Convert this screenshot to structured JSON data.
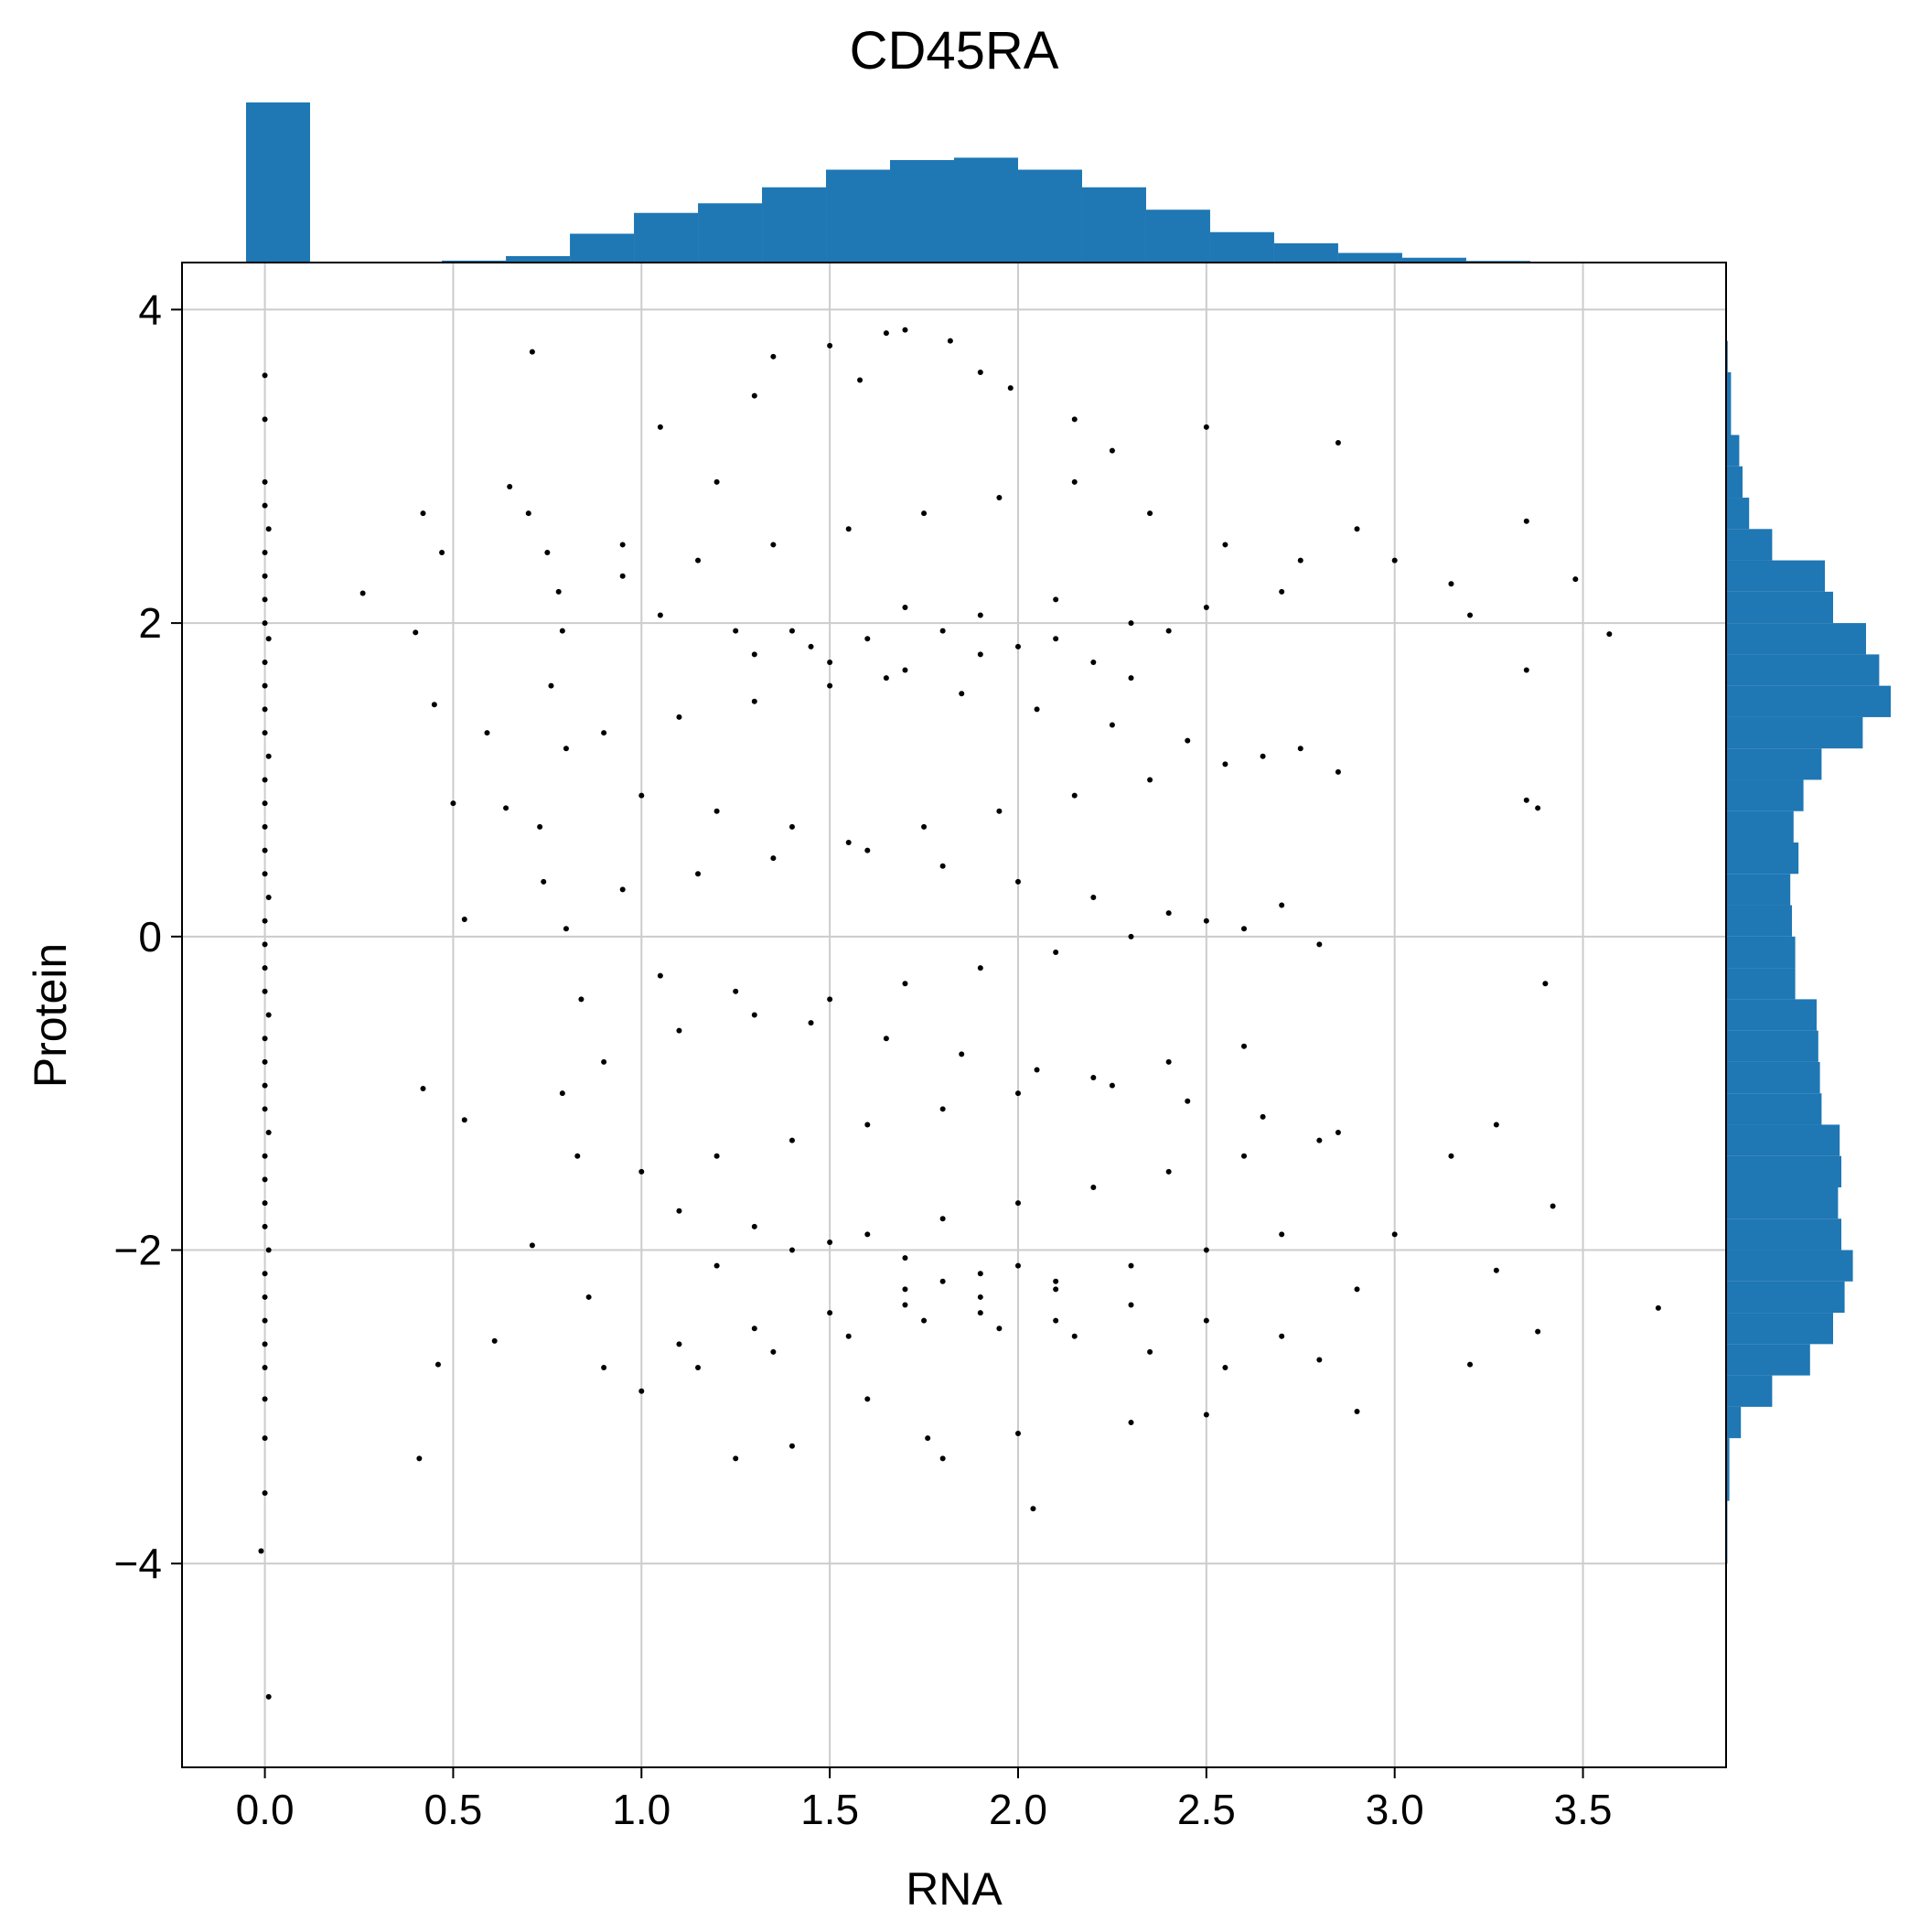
{
  "chart_data": {
    "type": "scatter",
    "title": "CD45RA",
    "xlabel": "RNA",
    "ylabel": "Protein",
    "xlim": [
      -0.22,
      3.88
    ],
    "ylim": [
      -5.3,
      4.3
    ],
    "x_ticks": [
      "0.0",
      "0.5",
      "1.0",
      "1.5",
      "2.0",
      "2.5",
      "3.0",
      "3.5"
    ],
    "y_ticks": [
      "4",
      "2",
      "0",
      "−2",
      "−4"
    ],
    "x_tick_values": [
      0,
      0.5,
      1.0,
      1.5,
      2.0,
      2.5,
      3.0,
      3.5
    ],
    "y_tick_values": [
      4,
      2,
      0,
      -2,
      -4
    ],
    "grid": true,
    "point_color": "#000000",
    "hist_color": "#1f77b4",
    "marginal_x_hist": {
      "bin_width": 0.17,
      "bins": [
        {
          "x0": -0.05,
          "x1": 0.12,
          "height": 1.0
        },
        {
          "x0": 0.47,
          "x1": 0.64,
          "height": 0.012
        },
        {
          "x0": 0.64,
          "x1": 0.81,
          "height": 0.04
        },
        {
          "x0": 0.81,
          "x1": 0.98,
          "height": 0.18
        },
        {
          "x0": 0.98,
          "x1": 1.15,
          "height": 0.31
        },
        {
          "x0": 1.15,
          "x1": 1.32,
          "height": 0.37
        },
        {
          "x0": 1.32,
          "x1": 1.49,
          "height": 0.47
        },
        {
          "x0": 1.49,
          "x1": 1.66,
          "height": 0.58
        },
        {
          "x0": 1.66,
          "x1": 1.83,
          "height": 0.64
        },
        {
          "x0": 1.83,
          "x1": 2.0,
          "height": 0.655
        },
        {
          "x0": 2.0,
          "x1": 2.17,
          "height": 0.58
        },
        {
          "x0": 2.17,
          "x1": 2.34,
          "height": 0.47
        },
        {
          "x0": 2.34,
          "x1": 2.51,
          "height": 0.33
        },
        {
          "x0": 2.51,
          "x1": 2.68,
          "height": 0.19
        },
        {
          "x0": 2.68,
          "x1": 2.85,
          "height": 0.12
        },
        {
          "x0": 2.85,
          "x1": 3.02,
          "height": 0.06
        },
        {
          "x0": 3.02,
          "x1": 3.19,
          "height": 0.03
        },
        {
          "x0": 3.19,
          "x1": 3.36,
          "height": 0.01
        }
      ]
    },
    "marginal_y_hist": {
      "bins": [
        {
          "y0": 3.6,
          "y1": 3.8,
          "width": 0.01
        },
        {
          "y0": 3.2,
          "y1": 3.6,
          "width": 0.03
        },
        {
          "y0": 3.0,
          "y1": 3.2,
          "width": 0.08
        },
        {
          "y0": 2.8,
          "y1": 3.0,
          "width": 0.1
        },
        {
          "y0": 2.6,
          "y1": 2.8,
          "width": 0.14
        },
        {
          "y0": 2.4,
          "y1": 2.6,
          "width": 0.28
        },
        {
          "y0": 2.2,
          "y1": 2.4,
          "width": 0.6
        },
        {
          "y0": 2.0,
          "y1": 2.2,
          "width": 0.65
        },
        {
          "y0": 1.8,
          "y1": 2.0,
          "width": 0.85
        },
        {
          "y0": 1.6,
          "y1": 1.8,
          "width": 0.93
        },
        {
          "y0": 1.4,
          "y1": 1.6,
          "width": 1.0
        },
        {
          "y0": 1.2,
          "y1": 1.4,
          "width": 0.83
        },
        {
          "y0": 1.0,
          "y1": 1.2,
          "width": 0.58
        },
        {
          "y0": 0.8,
          "y1": 1.0,
          "width": 0.47
        },
        {
          "y0": 0.6,
          "y1": 0.8,
          "width": 0.41
        },
        {
          "y0": 0.4,
          "y1": 0.6,
          "width": 0.44
        },
        {
          "y0": 0.2,
          "y1": 0.4,
          "width": 0.39
        },
        {
          "y0": 0.0,
          "y1": 0.2,
          "width": 0.4
        },
        {
          "y0": -0.2,
          "y1": 0.0,
          "width": 0.42
        },
        {
          "y0": -0.4,
          "y1": -0.2,
          "width": 0.42
        },
        {
          "y0": -0.6,
          "y1": -0.4,
          "width": 0.55
        },
        {
          "y0": -0.8,
          "y1": -0.6,
          "width": 0.56
        },
        {
          "y0": -1.0,
          "y1": -0.8,
          "width": 0.57
        },
        {
          "y0": -1.2,
          "y1": -1.0,
          "width": 0.58
        },
        {
          "y0": -1.4,
          "y1": -1.2,
          "width": 0.69
        },
        {
          "y0": -1.6,
          "y1": -1.4,
          "width": 0.7
        },
        {
          "y0": -1.8,
          "y1": -1.6,
          "width": 0.68
        },
        {
          "y0": -2.0,
          "y1": -1.8,
          "width": 0.7
        },
        {
          "y0": -2.2,
          "y1": -2.0,
          "width": 0.77
        },
        {
          "y0": -2.4,
          "y1": -2.2,
          "width": 0.72
        },
        {
          "y0": -2.6,
          "y1": -2.4,
          "width": 0.65
        },
        {
          "y0": -2.8,
          "y1": -2.6,
          "width": 0.51
        },
        {
          "y0": -3.0,
          "y1": -2.8,
          "width": 0.28
        },
        {
          "y0": -3.2,
          "y1": -3.0,
          "width": 0.09
        },
        {
          "y0": -3.6,
          "y1": -3.2,
          "width": 0.02
        },
        {
          "y0": -4.0,
          "y1": -3.6,
          "width": 0.008
        },
        {
          "y0": -4.2,
          "y1": -4.0,
          "width": 0.005
        },
        {
          "y0": -4.9,
          "y1": -4.7,
          "width": 0.005
        }
      ]
    },
    "points": [
      [
        0.0,
        3.58
      ],
      [
        0.0,
        3.3
      ],
      [
        0.0,
        2.9
      ],
      [
        0.0,
        2.75
      ],
      [
        0.01,
        2.6
      ],
      [
        0.0,
        2.45
      ],
      [
        0.0,
        2.3
      ],
      [
        0.0,
        2.15
      ],
      [
        0.0,
        2.0
      ],
      [
        0.01,
        1.9
      ],
      [
        0.0,
        1.75
      ],
      [
        0.0,
        1.6
      ],
      [
        0.0,
        1.45
      ],
      [
        0.0,
        1.3
      ],
      [
        0.01,
        1.15
      ],
      [
        0.0,
        1.0
      ],
      [
        0.0,
        0.85
      ],
      [
        0.0,
        0.7
      ],
      [
        0.0,
        0.55
      ],
      [
        0.0,
        0.4
      ],
      [
        0.01,
        0.25
      ],
      [
        0.0,
        0.1
      ],
      [
        0.0,
        -0.05
      ],
      [
        0.0,
        -0.2
      ],
      [
        0.0,
        -0.35
      ],
      [
        0.01,
        -0.5
      ],
      [
        0.0,
        -0.65
      ],
      [
        0.0,
        -0.8
      ],
      [
        0.0,
        -0.95
      ],
      [
        0.0,
        -1.1
      ],
      [
        0.01,
        -1.25
      ],
      [
        0.0,
        -1.4
      ],
      [
        0.0,
        -1.55
      ],
      [
        0.0,
        -1.7
      ],
      [
        0.0,
        -1.85
      ],
      [
        0.01,
        -2.0
      ],
      [
        0.0,
        -2.15
      ],
      [
        0.0,
        -2.3
      ],
      [
        0.0,
        -2.45
      ],
      [
        0.0,
        -2.6
      ],
      [
        0.0,
        -2.75
      ],
      [
        0.0,
        -2.95
      ],
      [
        0.0,
        -3.2
      ],
      [
        0.0,
        -3.55
      ],
      [
        -0.01,
        -3.92
      ],
      [
        0.01,
        -4.85
      ],
      [
        0.71,
        3.73
      ],
      [
        0.42,
        2.7
      ],
      [
        0.47,
        2.45
      ],
      [
        0.26,
        2.19
      ],
      [
        0.4,
        1.94
      ],
      [
        0.45,
        1.48
      ],
      [
        0.5,
        0.85
      ],
      [
        0.53,
        0.11
      ],
      [
        0.42,
        -0.97
      ],
      [
        0.53,
        -1.17
      ],
      [
        0.46,
        -2.73
      ],
      [
        0.41,
        -3.33
      ],
      [
        0.61,
        -2.58
      ],
      [
        0.71,
        -1.97
      ],
      [
        0.64,
        0.82
      ],
      [
        0.59,
        1.3
      ],
      [
        0.65,
        2.87
      ],
      [
        0.7,
        2.7
      ],
      [
        0.75,
        2.45
      ],
      [
        0.78,
        2.2
      ],
      [
        0.79,
        1.95
      ],
      [
        0.76,
        1.6
      ],
      [
        0.8,
        1.2
      ],
      [
        0.73,
        0.7
      ],
      [
        0.74,
        0.35
      ],
      [
        0.8,
        0.05
      ],
      [
        0.84,
        -0.4
      ],
      [
        0.79,
        -1.0
      ],
      [
        0.83,
        -1.4
      ],
      [
        0.86,
        -2.3
      ],
      [
        0.95,
        2.5
      ],
      [
        1.05,
        3.25
      ],
      [
        1.2,
        2.9
      ],
      [
        1.3,
        3.45
      ],
      [
        1.35,
        3.7
      ],
      [
        1.5,
        3.77
      ],
      [
        1.58,
        3.55
      ],
      [
        1.65,
        3.85
      ],
      [
        1.7,
        3.87
      ],
      [
        1.82,
        3.8
      ],
      [
        1.9,
        3.6
      ],
      [
        1.98,
        3.5
      ],
      [
        2.15,
        3.3
      ],
      [
        2.25,
        3.1
      ],
      [
        2.5,
        3.25
      ],
      [
        2.85,
        3.15
      ],
      [
        2.9,
        2.6
      ],
      [
        3.0,
        2.4
      ],
      [
        3.15,
        2.25
      ],
      [
        3.2,
        2.05
      ],
      [
        3.35,
        2.65
      ],
      [
        3.35,
        1.7
      ],
      [
        3.48,
        2.28
      ],
      [
        3.57,
        1.93
      ],
      [
        3.35,
        0.87
      ],
      [
        3.38,
        0.82
      ],
      [
        3.4,
        -0.3
      ],
      [
        3.42,
        -1.72
      ],
      [
        3.7,
        -2.37
      ],
      [
        3.38,
        -2.52
      ],
      [
        3.2,
        -2.73
      ],
      [
        3.27,
        -2.13
      ],
      [
        3.27,
        -1.2
      ],
      [
        3.15,
        -1.4
      ],
      [
        3.0,
        -1.9
      ],
      [
        2.9,
        -3.03
      ],
      [
        2.8,
        -2.7
      ],
      [
        2.5,
        -3.05
      ],
      [
        2.3,
        -3.1
      ],
      [
        2.04,
        -3.65
      ],
      [
        1.8,
        -3.33
      ],
      [
        1.4,
        -3.25
      ],
      [
        1.25,
        -3.33
      ],
      [
        2.0,
        -3.17
      ],
      [
        1.76,
        -3.2
      ],
      [
        1.6,
        -2.95
      ],
      [
        1.0,
        -2.9
      ],
      [
        0.9,
        -2.75
      ],
      [
        1.1,
        -2.6
      ],
      [
        1.3,
        -2.5
      ],
      [
        1.5,
        -2.4
      ],
      [
        1.7,
        -2.35
      ],
      [
        1.9,
        -2.3
      ],
      [
        2.1,
        -2.2
      ],
      [
        2.3,
        -2.1
      ],
      [
        2.5,
        -2.0
      ],
      [
        2.7,
        -1.9
      ],
      [
        1.2,
        -2.1
      ],
      [
        1.4,
        -2.0
      ],
      [
        1.6,
        -1.9
      ],
      [
        1.8,
        -1.8
      ],
      [
        2.0,
        -1.7
      ],
      [
        2.2,
        -1.6
      ],
      [
        2.4,
        -1.5
      ],
      [
        2.6,
        -1.4
      ],
      [
        2.8,
        -1.3
      ],
      [
        1.0,
        -1.5
      ],
      [
        1.2,
        -1.4
      ],
      [
        1.4,
        -1.3
      ],
      [
        1.6,
        -1.2
      ],
      [
        1.8,
        -1.1
      ],
      [
        2.0,
        -1.0
      ],
      [
        2.2,
        -0.9
      ],
      [
        2.4,
        -0.8
      ],
      [
        2.6,
        -0.7
      ],
      [
        0.9,
        -0.8
      ],
      [
        1.1,
        -0.6
      ],
      [
        1.3,
        -0.5
      ],
      [
        1.5,
        -0.4
      ],
      [
        1.7,
        -0.3
      ],
      [
        1.9,
        -0.2
      ],
      [
        2.1,
        -0.1
      ],
      [
        2.3,
        0.0
      ],
      [
        2.5,
        0.1
      ],
      [
        2.7,
        0.2
      ],
      [
        0.95,
        0.3
      ],
      [
        1.15,
        0.4
      ],
      [
        1.35,
        0.5
      ],
      [
        1.55,
        0.6
      ],
      [
        1.75,
        0.7
      ],
      [
        1.95,
        0.8
      ],
      [
        2.15,
        0.9
      ],
      [
        2.35,
        1.0
      ],
      [
        2.55,
        1.1
      ],
      [
        2.75,
        1.2
      ],
      [
        0.9,
        1.3
      ],
      [
        1.1,
        1.4
      ],
      [
        1.3,
        1.5
      ],
      [
        1.5,
        1.6
      ],
      [
        1.7,
        1.7
      ],
      [
        1.9,
        1.8
      ],
      [
        2.1,
        1.9
      ],
      [
        2.3,
        2.0
      ],
      [
        2.5,
        2.1
      ],
      [
        2.7,
        2.2
      ],
      [
        0.95,
        2.3
      ],
      [
        1.15,
        2.4
      ],
      [
        1.35,
        2.5
      ],
      [
        1.55,
        2.6
      ],
      [
        1.75,
        2.7
      ],
      [
        1.95,
        2.8
      ],
      [
        2.15,
        2.9
      ],
      [
        2.35,
        2.7
      ],
      [
        2.55,
        2.5
      ],
      [
        2.75,
        2.4
      ],
      [
        1.05,
        2.05
      ],
      [
        1.25,
        1.95
      ],
      [
        1.45,
        1.85
      ],
      [
        1.65,
        1.65
      ],
      [
        1.85,
        1.55
      ],
      [
        2.05,
        1.45
      ],
      [
        2.25,
        1.35
      ],
      [
        2.45,
        1.25
      ],
      [
        2.65,
        1.15
      ],
      [
        2.85,
        1.05
      ],
      [
        1.0,
        0.9
      ],
      [
        1.2,
        0.8
      ],
      [
        1.4,
        0.7
      ],
      [
        1.6,
        0.55
      ],
      [
        1.8,
        0.45
      ],
      [
        2.0,
        0.35
      ],
      [
        2.2,
        0.25
      ],
      [
        2.4,
        0.15
      ],
      [
        2.6,
        0.05
      ],
      [
        2.8,
        -0.05
      ],
      [
        1.05,
        -0.25
      ],
      [
        1.25,
        -0.35
      ],
      [
        1.45,
        -0.55
      ],
      [
        1.65,
        -0.65
      ],
      [
        1.85,
        -0.75
      ],
      [
        2.05,
        -0.85
      ],
      [
        2.25,
        -0.95
      ],
      [
        2.45,
        -1.05
      ],
      [
        2.65,
        -1.15
      ],
      [
        2.85,
        -1.25
      ],
      [
        1.1,
        -1.75
      ],
      [
        1.3,
        -1.85
      ],
      [
        1.5,
        -1.95
      ],
      [
        1.7,
        -2.05
      ],
      [
        1.9,
        -2.15
      ],
      [
        2.1,
        -2.25
      ],
      [
        2.3,
        -2.35
      ],
      [
        2.5,
        -2.45
      ],
      [
        2.7,
        -2.55
      ],
      [
        2.9,
        -2.25
      ],
      [
        1.15,
        -2.75
      ],
      [
        1.35,
        -2.65
      ],
      [
        1.55,
        -2.55
      ],
      [
        1.75,
        -2.45
      ],
      [
        1.95,
        -2.5
      ],
      [
        2.15,
        -2.55
      ],
      [
        2.35,
        -2.65
      ],
      [
        2.55,
        -2.75
      ],
      [
        1.6,
        1.9
      ],
      [
        1.7,
        2.1
      ],
      [
        1.8,
        1.95
      ],
      [
        1.9,
        2.05
      ],
      [
        2.0,
        1.85
      ],
      [
        2.1,
        2.15
      ],
      [
        2.2,
        1.75
      ],
      [
        1.5,
        1.75
      ],
      [
        1.4,
        1.95
      ],
      [
        1.3,
        1.8
      ],
      [
        2.3,
        1.65
      ],
      [
        2.4,
        1.95
      ],
      [
        1.8,
        -2.2
      ],
      [
        1.9,
        -2.4
      ],
      [
        2.0,
        -2.1
      ],
      [
        2.1,
        -2.45
      ],
      [
        1.7,
        -2.25
      ]
    ]
  }
}
